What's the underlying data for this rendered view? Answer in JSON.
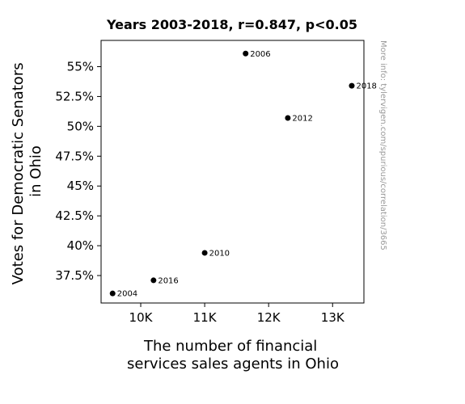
{
  "chart_data": {
    "type": "scatter",
    "title": "Years 2003-2018, r=0.847, p<0.05",
    "xlabel": [
      "The number of financial",
      "services sales agents in Ohio"
    ],
    "ylabel": [
      "Votes for Democratic Senators",
      "in Ohio"
    ],
    "watermark": "More info: tylervigen.com/spurious/correlation/3665",
    "xlim": [
      9380,
      13490
    ],
    "ylim": [
      35.2,
      57.2
    ],
    "xticks": [
      {
        "value": 10000,
        "label": "10K"
      },
      {
        "value": 11000,
        "label": "11K"
      },
      {
        "value": 12000,
        "label": "12K"
      },
      {
        "value": 13000,
        "label": "13K"
      }
    ],
    "yticks": [
      {
        "value": 37.5,
        "label": "37.5%"
      },
      {
        "value": 40,
        "label": "40%"
      },
      {
        "value": 42.5,
        "label": "42.5%"
      },
      {
        "value": 45,
        "label": "45%"
      },
      {
        "value": 47.5,
        "label": "47.5%"
      },
      {
        "value": 50,
        "label": "50%"
      },
      {
        "value": 52.5,
        "label": "52.5%"
      },
      {
        "value": 55,
        "label": "55%"
      }
    ],
    "points": [
      {
        "label": "2004",
        "x": 9560,
        "y": 36.0
      },
      {
        "label": "2006",
        "x": 11640,
        "y": 56.1
      },
      {
        "label": "2010",
        "x": 11000,
        "y": 39.4
      },
      {
        "label": "2012",
        "x": 12300,
        "y": 50.7
      },
      {
        "label": "2016",
        "x": 10200,
        "y": 37.1
      },
      {
        "label": "2018",
        "x": 13300,
        "y": 53.4
      }
    ],
    "grid": false,
    "marker_color": "#000000"
  }
}
